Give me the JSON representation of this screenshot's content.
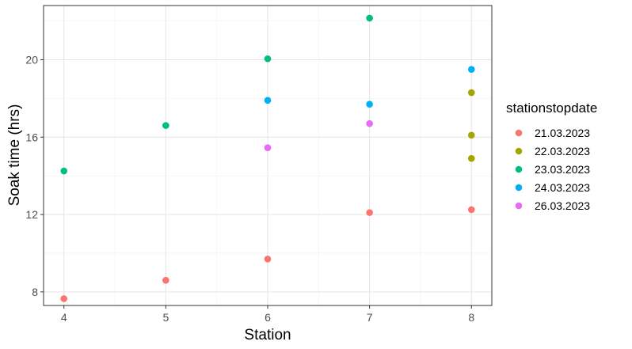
{
  "chart_data": {
    "type": "scatter",
    "title": "",
    "xlabel": "Station",
    "ylabel": "Soak time (hrs)",
    "xlim": [
      3.8,
      8.2
    ],
    "ylim": [
      7.3,
      22.8
    ],
    "x_ticks": [
      4,
      5,
      6,
      7,
      8
    ],
    "y_ticks": [
      8,
      12,
      16,
      20
    ],
    "x_tick_labels": [
      "4",
      "5",
      "6",
      "7",
      "8"
    ],
    "y_tick_labels": [
      "8",
      "12",
      "16",
      "20"
    ],
    "grid": true,
    "legend_title": "stationstopdate",
    "legend_position": "right",
    "series": [
      {
        "name": "21.03.2023",
        "color": "#F8766D",
        "points": [
          [
            4,
            7.65
          ],
          [
            5,
            8.6
          ],
          [
            6,
            9.7
          ],
          [
            7,
            12.1
          ],
          [
            8,
            12.25
          ]
        ]
      },
      {
        "name": "22.03.2023",
        "color": "#A3A500",
        "points": [
          [
            8,
            18.3
          ],
          [
            8,
            16.1
          ],
          [
            8,
            14.9
          ]
        ]
      },
      {
        "name": "23.03.2023",
        "color": "#00BF7D",
        "points": [
          [
            4,
            14.25
          ],
          [
            5,
            16.6
          ],
          [
            6,
            20.05
          ],
          [
            7,
            22.15
          ]
        ]
      },
      {
        "name": "24.03.2023",
        "color": "#00B0F6",
        "points": [
          [
            6,
            17.9
          ],
          [
            7,
            17.7
          ],
          [
            8,
            19.5
          ]
        ]
      },
      {
        "name": "26.03.2023",
        "color": "#E76BF3",
        "points": [
          [
            6,
            15.45
          ],
          [
            7,
            16.7
          ]
        ]
      }
    ]
  }
}
